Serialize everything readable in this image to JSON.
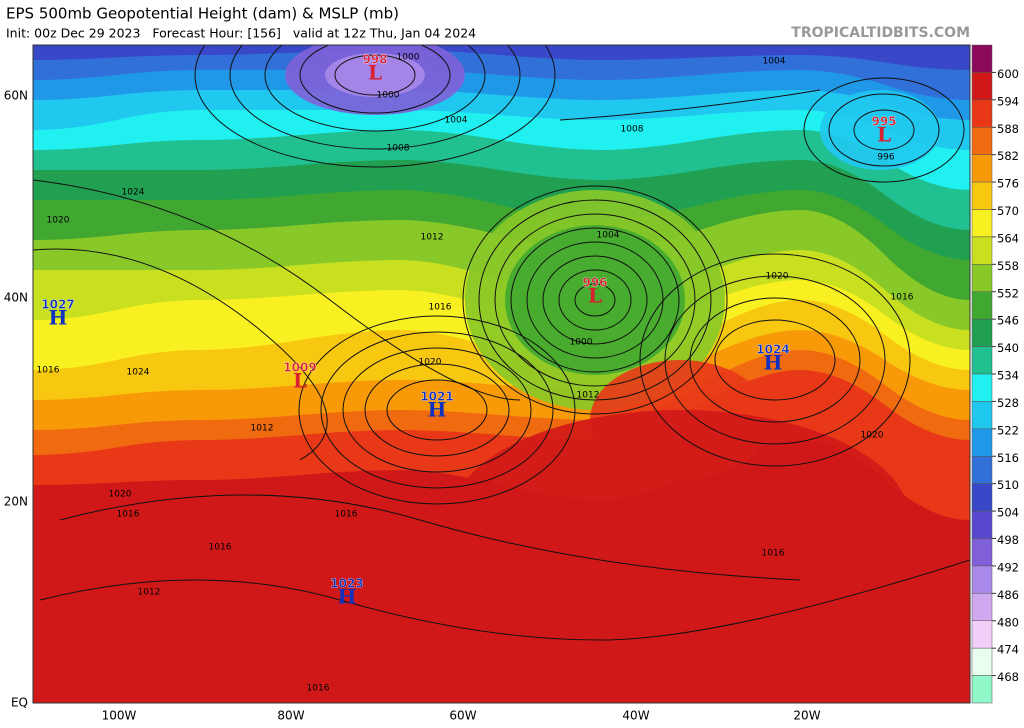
{
  "header": {
    "title": "EPS 500mb Geopotential Height (dam) & MSLP (mb)",
    "subtitle": "Init: 00z Dec 29 2023   Forecast Hour: [156]   valid at 12z Thu, Jan 04 2024",
    "site": "TROPICALTIDBITS.COM"
  },
  "map": {
    "lat_labels": [
      "60N",
      "40N",
      "20N",
      "EQ"
    ],
    "lon_labels": [
      "100W",
      "80W",
      "60W",
      "40W",
      "20W"
    ],
    "pressure_centers": [
      {
        "kind": "L",
        "value": 998
      },
      {
        "kind": "L",
        "value": 995
      },
      {
        "kind": "L",
        "value": 996
      },
      {
        "kind": "L",
        "value": 1009
      },
      {
        "kind": "H",
        "value": 1027
      },
      {
        "kind": "H",
        "value": 1021
      },
      {
        "kind": "H",
        "value": 1024
      },
      {
        "kind": "H",
        "value": 1023
      }
    ],
    "contour_labels": [
      "1000",
      "1000",
      "1004",
      "1008",
      "1024",
      "1020",
      "1012",
      "1008",
      "1004",
      "996",
      "1004",
      "1020",
      "1016",
      "1016",
      "1000",
      "1020",
      "1012",
      "1024",
      "1016",
      "1012",
      "1020",
      "1020",
      "1016",
      "1016",
      "1016",
      "1016",
      "1012",
      "1016"
    ],
    "colorbar": {
      "levels": [
        600,
        594,
        588,
        582,
        576,
        570,
        564,
        558,
        552,
        546,
        540,
        534,
        528,
        522,
        516,
        510,
        504,
        498,
        492,
        486,
        480,
        474,
        468
      ],
      "colors": [
        "#8c0a5c",
        "#d01818",
        "#e83818",
        "#f06a10",
        "#f89a08",
        "#f8c810",
        "#f8f020",
        "#c8e020",
        "#88c828",
        "#40a830",
        "#20a050",
        "#20c090",
        "#20f0f0",
        "#20c8f0",
        "#2098e8",
        "#3070d8",
        "#3848c8",
        "#5848d0",
        "#8060d8",
        "#a888e8",
        "#d0a8f0",
        "#f0d0f8",
        "#e8fff0",
        "#90f8c8"
      ]
    }
  }
}
